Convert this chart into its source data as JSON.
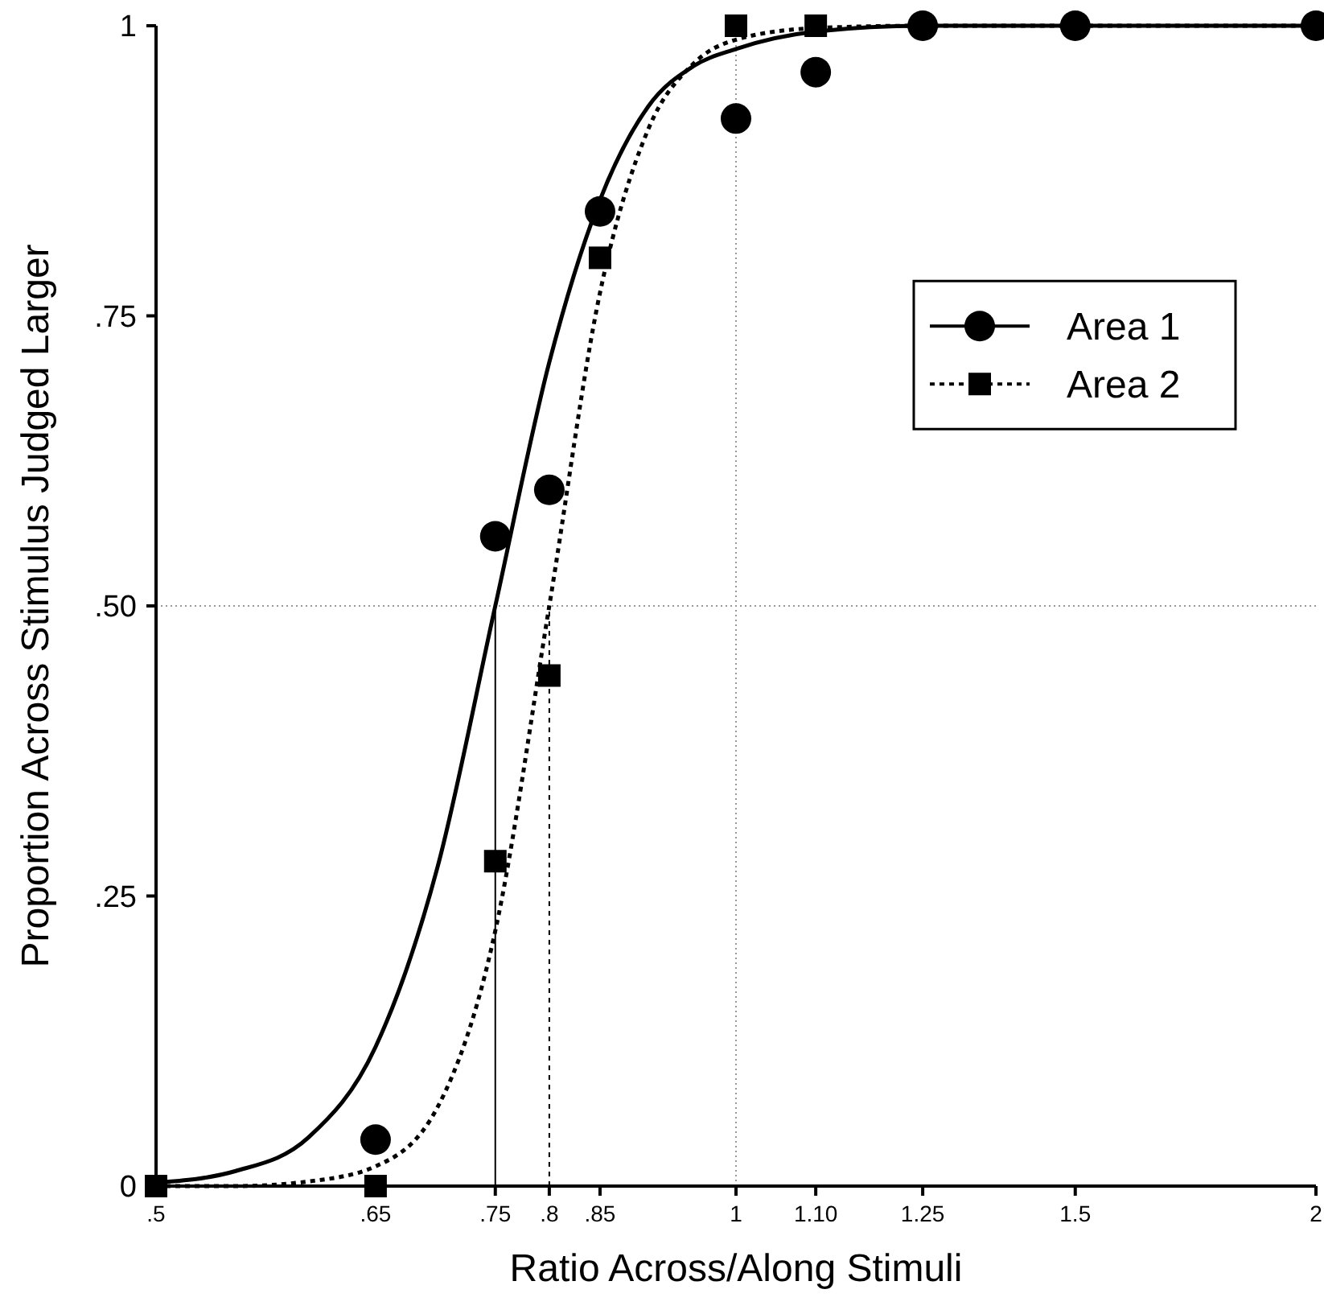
{
  "chart_data": {
    "type": "scatter",
    "xlabel": "Ratio Across/Along Stimuli",
    "ylabel": "Proportion Across Stimulus Judged Larger",
    "log": "x",
    "xlim": [
      0.5,
      2
    ],
    "ylim": [
      0,
      1
    ],
    "xticks": [
      {
        "value": 0.5,
        "label": ".5"
      },
      {
        "value": 0.65,
        "label": ".65"
      },
      {
        "value": 0.75,
        "label": ".75"
      },
      {
        "value": 0.8,
        "label": ".8"
      },
      {
        "value": 0.85,
        "label": ".85"
      },
      1,
      {
        "value": 1.1,
        "label": "1.10"
      },
      1.25,
      1.5,
      2
    ],
    "yticks": [
      0,
      {
        "value": 0.25,
        "label": ".25"
      },
      {
        "value": 0.5,
        "label": ".50"
      },
      {
        "value": 0.75,
        "label": ".75"
      },
      1
    ],
    "grid": false,
    "legend": "top right",
    "ref_lines": [
      {
        "axis": "y",
        "value": 0.5,
        "color": "#999999",
        "line_style": "dotted"
      },
      {
        "axis": "x",
        "value": 1,
        "color": "#999999",
        "line_style": "dotted"
      }
    ],
    "series": [
      {
        "type": "line",
        "color": "#000000",
        "line_style": "solid",
        "marker": "none",
        "x": [
          0.5,
          0.55,
          0.6,
          0.65,
          0.7,
          0.75,
          0.8,
          0.85,
          0.9,
          0.95,
          1,
          1.1,
          1.25,
          1.5,
          2
        ],
        "values": [
          0.003,
          0.013,
          0.042,
          0.12,
          0.275,
          0.5,
          0.71,
          0.85,
          0.93,
          0.965,
          0.98,
          0.995,
          1,
          1,
          1
        ]
      },
      {
        "type": "line",
        "color": "#000000",
        "line_style": "dotted",
        "marker": "none",
        "x": [
          0.5,
          0.55,
          0.6,
          0.65,
          0.7,
          0.75,
          0.8,
          0.85,
          0.9,
          0.95,
          1,
          1.1,
          1.25,
          1.5,
          2
        ],
        "values": [
          0,
          0,
          0.004,
          0.017,
          0.068,
          0.22,
          0.5,
          0.77,
          0.91,
          0.967,
          0.988,
          0.998,
          1,
          1,
          1
        ]
      },
      {
        "type": "line",
        "color": "#000000",
        "line_style": "solid",
        "marker": "none",
        "x": [
          0.75,
          0.75
        ],
        "values": [
          0,
          0.5
        ]
      },
      {
        "type": "line",
        "color": "#000000",
        "line_style": "dotted",
        "marker": "none",
        "x": [
          0.8,
          0.8
        ],
        "values": [
          0,
          0.5
        ]
      },
      {
        "name": "Area 1",
        "color": "#000000",
        "marker": "circle",
        "line_style": "solid",
        "x": [
          0.65,
          0.75,
          0.8,
          0.85,
          1,
          1.1,
          1.25,
          1.5,
          2
        ],
        "values": [
          0.04,
          0.56,
          0.6,
          0.84,
          0.92,
          0.96,
          1,
          1,
          1
        ]
      },
      {
        "name": "Area 2",
        "color": "#000000",
        "marker": "square",
        "line_style": "dotted",
        "x": [
          0.5,
          0.65,
          0.75,
          0.8,
          0.85,
          1,
          1.1
        ],
        "values": [
          0,
          0,
          0.28,
          0.44,
          0.8,
          1,
          1
        ]
      }
    ]
  }
}
